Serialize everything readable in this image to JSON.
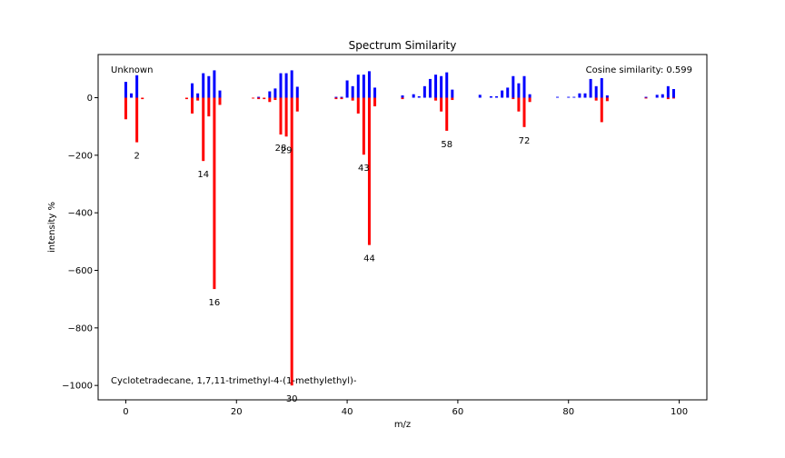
{
  "chart_data": {
    "type": "bar",
    "title": "Spectrum Similarity",
    "xlabel": "m/z",
    "ylabel": "intensity %",
    "xlim": [
      -5,
      105
    ],
    "ylim": [
      -1050,
      150
    ],
    "grid": false,
    "x_ticks": [
      0,
      20,
      40,
      60,
      80,
      100
    ],
    "y_ticks": [
      0,
      -200,
      -400,
      -600,
      -800,
      -1000
    ],
    "annotations": {
      "top_left": "Unknown",
      "top_right": "Cosine similarity: 0.599",
      "bottom_left": "Cyclotetradecane, 1,7,11-trimethyl-4-(1-methylethyl)-"
    },
    "series": [
      {
        "name": "Unknown",
        "color": "#0000ff",
        "points": [
          [
            0,
            55
          ],
          [
            1,
            15
          ],
          [
            2,
            78
          ],
          [
            12,
            50
          ],
          [
            13,
            15
          ],
          [
            14,
            85
          ],
          [
            15,
            75
          ],
          [
            16,
            95
          ],
          [
            17,
            25
          ],
          [
            24,
            3
          ],
          [
            26,
            22
          ],
          [
            27,
            32
          ],
          [
            28,
            85
          ],
          [
            29,
            85
          ],
          [
            30,
            95
          ],
          [
            31,
            38
          ],
          [
            38,
            3
          ],
          [
            39,
            3
          ],
          [
            40,
            60
          ],
          [
            41,
            40
          ],
          [
            42,
            80
          ],
          [
            43,
            80
          ],
          [
            44,
            92
          ],
          [
            45,
            35
          ],
          [
            50,
            8
          ],
          [
            52,
            12
          ],
          [
            53,
            5
          ],
          [
            54,
            40
          ],
          [
            55,
            65
          ],
          [
            56,
            80
          ],
          [
            57,
            75
          ],
          [
            58,
            88
          ],
          [
            59,
            28
          ],
          [
            64,
            10
          ],
          [
            66,
            5
          ],
          [
            67,
            5
          ],
          [
            68,
            25
          ],
          [
            69,
            35
          ],
          [
            70,
            75
          ],
          [
            71,
            50
          ],
          [
            72,
            75
          ],
          [
            73,
            12
          ],
          [
            78,
            3
          ],
          [
            80,
            3
          ],
          [
            81,
            3
          ],
          [
            82,
            15
          ],
          [
            83,
            15
          ],
          [
            84,
            65
          ],
          [
            85,
            40
          ],
          [
            86,
            68
          ],
          [
            87,
            8
          ],
          [
            94,
            3
          ],
          [
            96,
            10
          ],
          [
            97,
            12
          ],
          [
            98,
            40
          ],
          [
            99,
            30
          ]
        ]
      },
      {
        "name": "Cyclotetradecane, 1,7,11-trimethyl-4-(1-methylethyl)-",
        "color": "#ff0000",
        "points": [
          [
            0,
            -75
          ],
          [
            2,
            -155
          ],
          [
            3,
            -5
          ],
          [
            11,
            -5
          ],
          [
            12,
            -55
          ],
          [
            13,
            -10
          ],
          [
            14,
            -220
          ],
          [
            15,
            -65
          ],
          [
            16,
            -665
          ],
          [
            17,
            -25
          ],
          [
            23,
            -3
          ],
          [
            24,
            -5
          ],
          [
            25,
            -5
          ],
          [
            26,
            -15
          ],
          [
            27,
            -8
          ],
          [
            28,
            -128
          ],
          [
            29,
            -135
          ],
          [
            30,
            -1000
          ],
          [
            31,
            -48
          ],
          [
            38,
            -5
          ],
          [
            39,
            -5
          ],
          [
            41,
            -10
          ],
          [
            42,
            -55
          ],
          [
            43,
            -198
          ],
          [
            44,
            -512
          ],
          [
            45,
            -30
          ],
          [
            50,
            -5
          ],
          [
            56,
            -10
          ],
          [
            57,
            -48
          ],
          [
            58,
            -115
          ],
          [
            59,
            -8
          ],
          [
            70,
            -5
          ],
          [
            71,
            -48
          ],
          [
            72,
            -102
          ],
          [
            73,
            -15
          ],
          [
            85,
            -10
          ],
          [
            86,
            -85
          ],
          [
            87,
            -12
          ],
          [
            94,
            -3
          ],
          [
            98,
            -5
          ],
          [
            99,
            -3
          ]
        ]
      }
    ],
    "peak_labels": [
      {
        "x": 2,
        "y": -155,
        "text": "2"
      },
      {
        "x": 14,
        "y": -220,
        "text": "14"
      },
      {
        "x": 16,
        "y": -665,
        "text": "16"
      },
      {
        "x": 28,
        "y": -128,
        "text": "28"
      },
      {
        "x": 29,
        "y": -135,
        "text": "29"
      },
      {
        "x": 30,
        "y": -1000,
        "text": "30"
      },
      {
        "x": 43,
        "y": -198,
        "text": "43"
      },
      {
        "x": 44,
        "y": -512,
        "text": "44"
      },
      {
        "x": 58,
        "y": -115,
        "text": "58"
      },
      {
        "x": 72,
        "y": -102,
        "text": "72"
      }
    ]
  }
}
